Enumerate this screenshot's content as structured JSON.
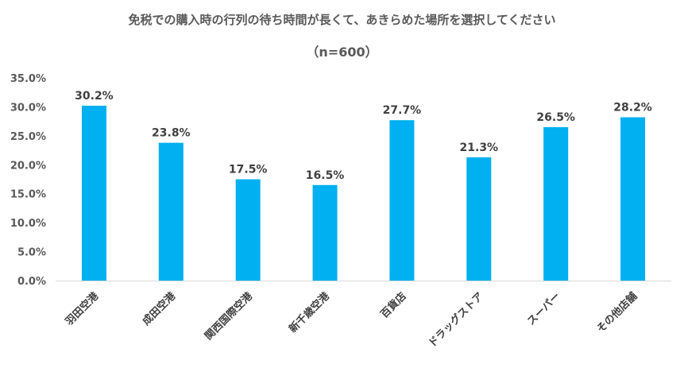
{
  "chart_data": {
    "type": "bar",
    "title": "免税での購入時の行列の待ち時間が長くて、あきらめた場所を選択してください",
    "subtitle": "（n=600）",
    "categories": [
      "羽田空港",
      "成田空港",
      "関西国際空港",
      "新千歳空港",
      "百貨店",
      "ドラッグストア",
      "スーパー",
      "その他店舗"
    ],
    "values": [
      30.2,
      23.8,
      17.5,
      16.5,
      27.7,
      21.3,
      26.5,
      28.2
    ],
    "data_labels": [
      "30.2%",
      "23.8%",
      "17.5%",
      "16.5%",
      "27.7%",
      "21.3%",
      "26.5%",
      "28.2%"
    ],
    "yticks": [
      "0.0%",
      "5.0%",
      "10.0%",
      "15.0%",
      "20.0%",
      "25.0%",
      "30.0%",
      "35.0%"
    ],
    "ylim": [
      0,
      35
    ],
    "xlabel": "",
    "ylabel": "",
    "grid": false,
    "bar_color": "#00B0F0"
  }
}
